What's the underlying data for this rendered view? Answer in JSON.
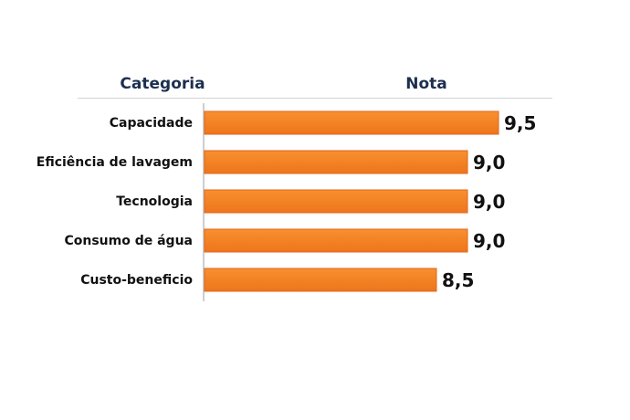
{
  "chart_data": {
    "type": "bar",
    "orientation": "horizontal",
    "column_headers": [
      "Categoria",
      "Nota"
    ],
    "categories": [
      "Capacidade",
      "Eficiência de lavagem",
      "Tecnologia",
      "Consumo de água",
      "Custo-beneficio"
    ],
    "values": [
      9.5,
      9.0,
      9.0,
      9.0,
      8.5
    ],
    "value_labels": [
      "9,5",
      "9,0",
      "9,0",
      "9,0",
      "8,5"
    ],
    "xlim": [
      4.75,
      9.5
    ],
    "grid": false,
    "colors": {
      "bar": "#f47f20",
      "bar_edge": "#e0661a",
      "header": "#1d2f4e"
    }
  }
}
